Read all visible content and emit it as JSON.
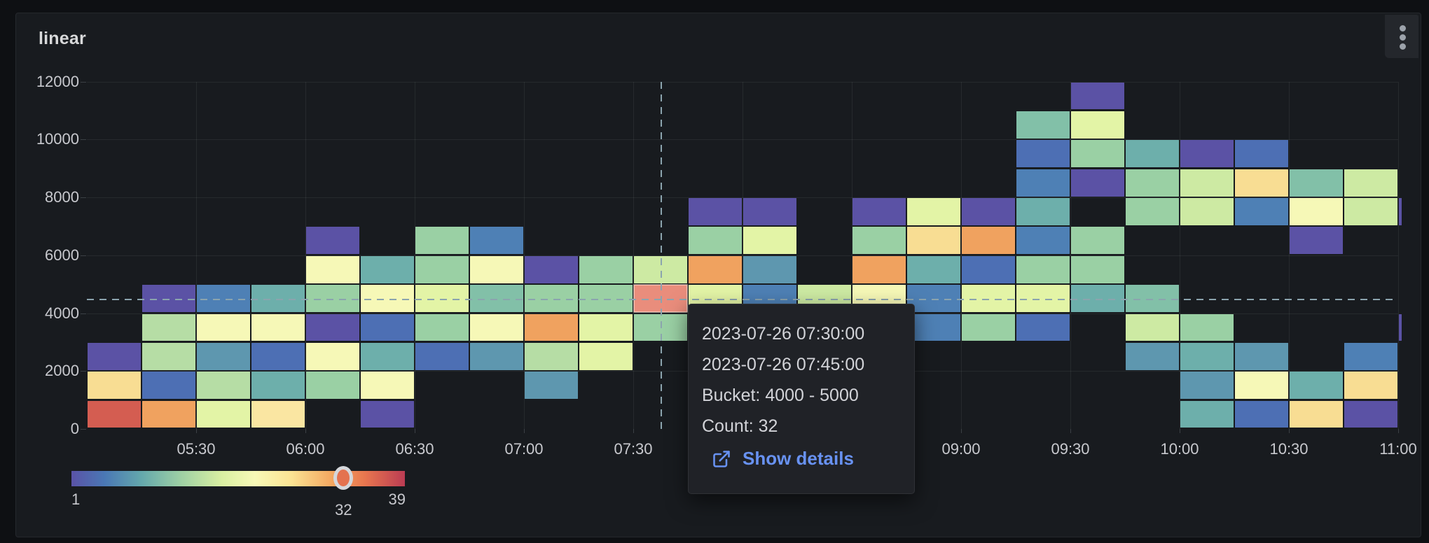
{
  "panel": {
    "title": "linear",
    "menu": "panel-menu"
  },
  "y_axis": {
    "ticks": [
      {
        "label": "0",
        "value": 0
      },
      {
        "label": "2000",
        "value": 2000
      },
      {
        "label": "4000",
        "value": 4000
      },
      {
        "label": "6000",
        "value": 6000
      },
      {
        "label": "8000",
        "value": 8000
      },
      {
        "label": "10000",
        "value": 10000
      },
      {
        "label": "12000",
        "value": 12000
      }
    ]
  },
  "x_axis": {
    "ticks": [
      {
        "label": "05:30",
        "slot": 2
      },
      {
        "label": "06:00",
        "slot": 4
      },
      {
        "label": "06:30",
        "slot": 6
      },
      {
        "label": "07:00",
        "slot": 8
      },
      {
        "label": "07:30",
        "slot": 10
      },
      {
        "label": "08:00",
        "slot": 12
      },
      {
        "label": "08:30",
        "slot": 14
      },
      {
        "label": "09:00",
        "slot": 16
      },
      {
        "label": "09:30",
        "slot": 18
      },
      {
        "label": "10:00",
        "slot": 20
      },
      {
        "label": "10:30",
        "slot": 22
      },
      {
        "label": "11:00",
        "slot": 24
      }
    ]
  },
  "tooltip": {
    "time_from": "2023-07-26 07:30:00",
    "time_to": "2023-07-26 07:45:00",
    "bucket": "Bucket: 4000 - 5000",
    "count": "Count: 32",
    "link_label": "Show details",
    "link_color": "#6892f2"
  },
  "legend": {
    "min_label": "1",
    "max_label": "39",
    "marker_label": "32",
    "min": 1,
    "max": 39,
    "marker_value": 32
  },
  "crosshair": {
    "col": 10,
    "value": 4500,
    "color": "#8ba4ae"
  },
  "chart_data": {
    "type": "heatmap",
    "title": "linear",
    "x_start": "05:00",
    "x_end": "11:00",
    "x_interval_minutes": 15,
    "y_bucket_size": 1000,
    "ylim": [
      0,
      12000
    ],
    "value_range": [
      1,
      39
    ],
    "highlighted_cell": {
      "time_from": "2023-07-26 07:30:00",
      "time_to": "2023-07-26 07:45:00",
      "bucket_low": 4000,
      "bucket_high": 5000,
      "count": 32
    },
    "palette": {
      "P": {
        "hex": "#5b52a5",
        "approx_count": 3
      },
      "RB": {
        "hex": "#4d6fb4",
        "approx_count": 6
      },
      "SB": {
        "hex": "#4e80b5",
        "approx_count": 8
      },
      "TB": {
        "hex": "#5e97af",
        "approx_count": 10
      },
      "T": {
        "hex": "#6dafab",
        "approx_count": 12
      },
      "TG": {
        "hex": "#82c0a8",
        "approx_count": 14
      },
      "G": {
        "hex": "#9ad0a4",
        "approx_count": 16
      },
      "LG": {
        "hex": "#b6dda5",
        "approx_count": 18
      },
      "PG": {
        "hex": "#cdeaa3",
        "approx_count": 20
      },
      "YG": {
        "hex": "#e3f4a6",
        "approx_count": 22
      },
      "PY": {
        "hex": "#f6f8b7",
        "approx_count": 24
      },
      "SA": {
        "hex": "#f8dd93",
        "approx_count": 27
      },
      "SL": {
        "hex": "#fae6a2",
        "approx_count": 26
      },
      "O": {
        "hex": "#f0a25f",
        "approx_count": 30
      },
      "HL": {
        "hex": "#e98d7c",
        "approx_count": 32
      },
      "R": {
        "hex": "#d45d51",
        "approx_count": 35
      }
    },
    "cells": [
      [
        0,
        0,
        "R"
      ],
      [
        0,
        1,
        "SA"
      ],
      [
        0,
        2,
        "P"
      ],
      [
        1,
        0,
        "O"
      ],
      [
        1,
        1,
        "RB"
      ],
      [
        1,
        2,
        "LG"
      ],
      [
        1,
        3,
        "LG"
      ],
      [
        1,
        4,
        "P"
      ],
      [
        2,
        0,
        "YG"
      ],
      [
        2,
        1,
        "LG"
      ],
      [
        2,
        2,
        "TB"
      ],
      [
        2,
        3,
        "PY"
      ],
      [
        2,
        4,
        "SB"
      ],
      [
        3,
        0,
        "SL"
      ],
      [
        3,
        1,
        "T"
      ],
      [
        3,
        2,
        "RB"
      ],
      [
        3,
        3,
        "PY"
      ],
      [
        3,
        4,
        "T"
      ],
      [
        4,
        1,
        "G"
      ],
      [
        4,
        2,
        "PY"
      ],
      [
        4,
        3,
        "P"
      ],
      [
        4,
        4,
        "G"
      ],
      [
        4,
        5,
        "PY"
      ],
      [
        4,
        6,
        "P"
      ],
      [
        5,
        0,
        "P"
      ],
      [
        5,
        1,
        "PY"
      ],
      [
        5,
        2,
        "T"
      ],
      [
        5,
        3,
        "RB"
      ],
      [
        5,
        4,
        "PY"
      ],
      [
        5,
        5,
        "T"
      ],
      [
        6,
        2,
        "RB"
      ],
      [
        6,
        3,
        "G"
      ],
      [
        6,
        4,
        "YG"
      ],
      [
        6,
        5,
        "G"
      ],
      [
        6,
        6,
        "G"
      ],
      [
        7,
        2,
        "TB"
      ],
      [
        7,
        3,
        "PY"
      ],
      [
        7,
        4,
        "TG"
      ],
      [
        7,
        5,
        "PY"
      ],
      [
        7,
        6,
        "SB"
      ],
      [
        8,
        1,
        "TB"
      ],
      [
        8,
        2,
        "LG"
      ],
      [
        8,
        3,
        "O"
      ],
      [
        8,
        4,
        "G"
      ],
      [
        8,
        5,
        "P"
      ],
      [
        9,
        2,
        "YG"
      ],
      [
        9,
        3,
        "YG"
      ],
      [
        9,
        4,
        "G"
      ],
      [
        9,
        5,
        "G"
      ],
      [
        10,
        3,
        "G"
      ],
      [
        10,
        4,
        "HL"
      ],
      [
        10,
        5,
        "PG"
      ],
      [
        11,
        3,
        "P"
      ],
      [
        11,
        4,
        "YG"
      ],
      [
        11,
        5,
        "O"
      ],
      [
        11,
        6,
        "G"
      ],
      [
        11,
        7,
        "P"
      ],
      [
        12,
        4,
        "SB"
      ],
      [
        12,
        5,
        "TB"
      ],
      [
        12,
        6,
        "YG"
      ],
      [
        12,
        7,
        "P"
      ],
      [
        13,
        4,
        "PG"
      ],
      [
        14,
        4,
        "PY"
      ],
      [
        14,
        5,
        "O"
      ],
      [
        14,
        6,
        "G"
      ],
      [
        14,
        7,
        "P"
      ],
      [
        15,
        3,
        "SB"
      ],
      [
        15,
        4,
        "SB"
      ],
      [
        15,
        5,
        "T"
      ],
      [
        15,
        6,
        "SA"
      ],
      [
        15,
        7,
        "YG"
      ],
      [
        16,
        3,
        "G"
      ],
      [
        16,
        4,
        "YG"
      ],
      [
        16,
        5,
        "RB"
      ],
      [
        16,
        6,
        "O"
      ],
      [
        16,
        7,
        "P"
      ],
      [
        17,
        3,
        "RB"
      ],
      [
        17,
        4,
        "YG"
      ],
      [
        17,
        5,
        "G"
      ],
      [
        17,
        6,
        "SB"
      ],
      [
        17,
        7,
        "T"
      ],
      [
        17,
        8,
        "SB"
      ],
      [
        17,
        9,
        "RB"
      ],
      [
        17,
        10,
        "TG"
      ],
      [
        18,
        4,
        "T"
      ],
      [
        18,
        5,
        "G"
      ],
      [
        18,
        6,
        "G"
      ],
      [
        18,
        8,
        "P"
      ],
      [
        18,
        9,
        "G"
      ],
      [
        18,
        10,
        "YG"
      ],
      [
        18,
        11,
        "P"
      ],
      [
        19,
        2,
        "TB"
      ],
      [
        19,
        3,
        "PG"
      ],
      [
        19,
        4,
        "TG"
      ],
      [
        19,
        7,
        "G"
      ],
      [
        19,
        8,
        "G"
      ],
      [
        19,
        9,
        "T"
      ],
      [
        20,
        0,
        "T"
      ],
      [
        20,
        1,
        "TB"
      ],
      [
        20,
        2,
        "T"
      ],
      [
        20,
        3,
        "G"
      ],
      [
        20,
        7,
        "PG"
      ],
      [
        20,
        8,
        "PG"
      ],
      [
        20,
        9,
        "P"
      ],
      [
        21,
        0,
        "RB"
      ],
      [
        21,
        1,
        "PY"
      ],
      [
        21,
        2,
        "TB"
      ],
      [
        21,
        7,
        "SB"
      ],
      [
        21,
        8,
        "SA"
      ],
      [
        21,
        9,
        "RB"
      ],
      [
        22,
        0,
        "SA"
      ],
      [
        22,
        1,
        "T"
      ],
      [
        22,
        6,
        "P"
      ],
      [
        22,
        7,
        "PY"
      ],
      [
        22,
        8,
        "TG"
      ],
      [
        23,
        0,
        "P"
      ],
      [
        23,
        1,
        "SA"
      ],
      [
        23,
        2,
        "SB"
      ],
      [
        23,
        7,
        "PG"
      ],
      [
        23,
        8,
        "PG"
      ],
      [
        24,
        3,
        "P"
      ],
      [
        24,
        7,
        "P"
      ]
    ]
  }
}
